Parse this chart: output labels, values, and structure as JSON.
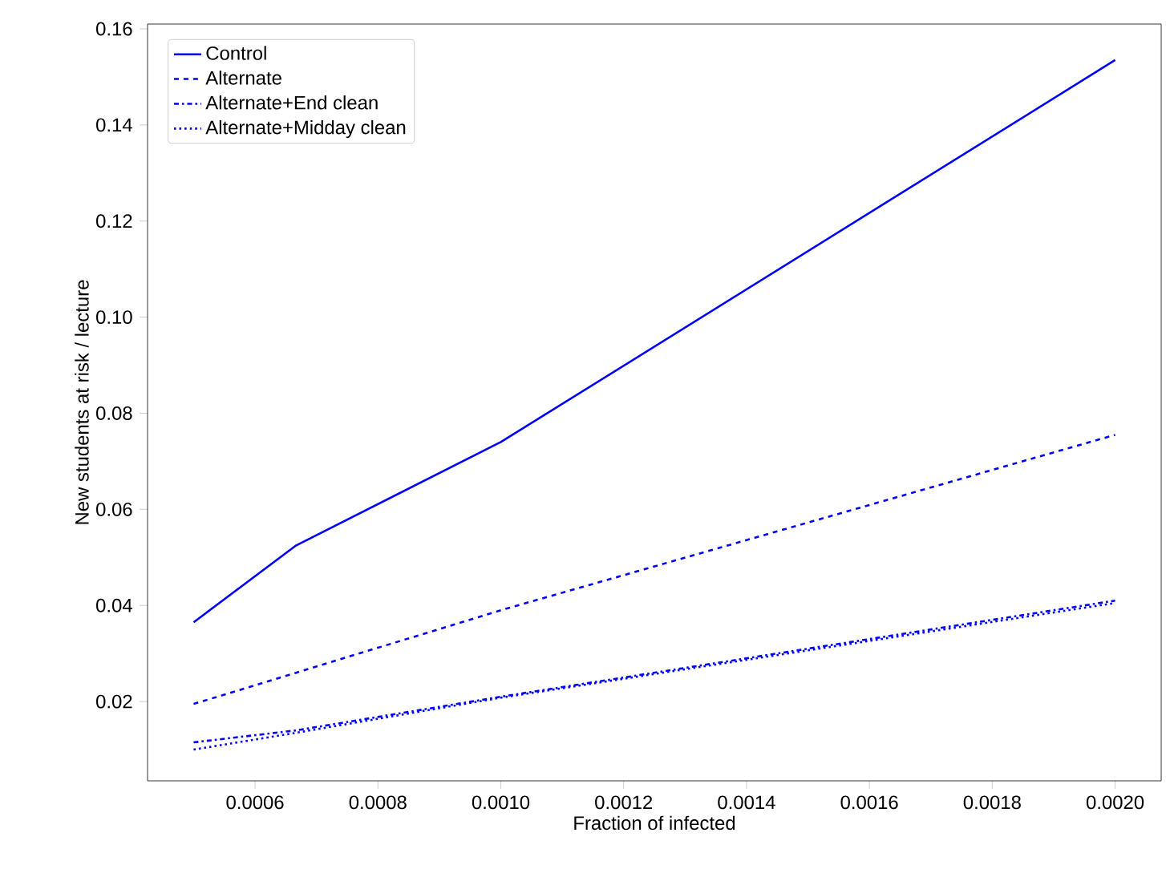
{
  "chart_data": {
    "type": "line",
    "xlabel": "Fraction of infected",
    "ylabel": "New students at risk / lecture",
    "x": [
      0.0005,
      0.000667,
      0.001,
      0.002
    ],
    "series": [
      {
        "name": "Control",
        "color": "#0000ff",
        "line_style": "solid",
        "values": [
          0.0365,
          0.0525,
          0.074,
          0.1535
        ]
      },
      {
        "name": "Alternate",
        "color": "#0000ff",
        "line_style": "dashed",
        "values": [
          0.0195,
          0.026,
          0.039,
          0.0755
        ]
      },
      {
        "name": "Alternate+End clean",
        "color": "#0000ff",
        "line_style": "dashdot",
        "values": [
          0.0115,
          0.014,
          0.021,
          0.041
        ]
      },
      {
        "name": "Alternate+Midday clean",
        "color": "#0000ff",
        "line_style": "dotted",
        "values": [
          0.01,
          0.0135,
          0.0208,
          0.0405
        ]
      }
    ],
    "xlim": [
      0.000425,
      0.002075
    ],
    "ylim": [
      0.0035,
      0.161
    ],
    "xticks": [
      {
        "value": 0.0006,
        "label": "0.0006"
      },
      {
        "value": 0.0008,
        "label": "0.0008"
      },
      {
        "value": 0.001,
        "label": "0.0010"
      },
      {
        "value": 0.0012,
        "label": "0.0012"
      },
      {
        "value": 0.0014,
        "label": "0.0014"
      },
      {
        "value": 0.0016,
        "label": "0.0016"
      },
      {
        "value": 0.0018,
        "label": "0.0018"
      },
      {
        "value": 0.002,
        "label": "0.0020"
      }
    ],
    "yticks": [
      {
        "value": 0.02,
        "label": "0.02"
      },
      {
        "value": 0.04,
        "label": "0.04"
      },
      {
        "value": 0.06,
        "label": "0.06"
      },
      {
        "value": 0.08,
        "label": "0.08"
      },
      {
        "value": 0.1,
        "label": "0.10"
      },
      {
        "value": 0.12,
        "label": "0.12"
      },
      {
        "value": 0.14,
        "label": "0.14"
      },
      {
        "value": 0.16,
        "label": "0.16"
      }
    ],
    "legend": "top left",
    "grid": false,
    "marker": "none"
  }
}
